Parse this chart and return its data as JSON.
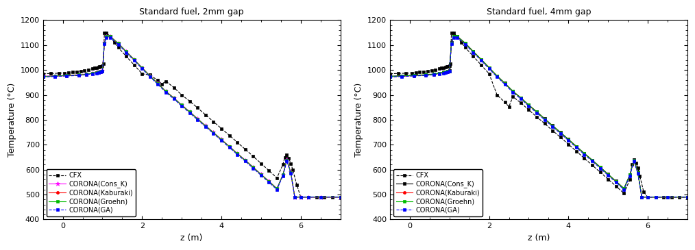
{
  "title_left": "Standard fuel, 2mm gap",
  "title_right": "Standard fuel, 4mm gap",
  "xlabel": "z (m)",
  "ylabel": "Temperature (°C)",
  "xlim": [
    -0.5,
    7.0
  ],
  "ylim": [
    400,
    1200
  ],
  "yticks": [
    400,
    500,
    600,
    700,
    800,
    900,
    1000,
    1100,
    1200
  ],
  "xticks": [
    0,
    2,
    4,
    6
  ],
  "legend_labels": [
    "CFX",
    "CORONA(Cons_K)",
    "CORONA(Kaburaki)",
    "CORONA(Groehn)",
    "CORONA(GA)"
  ],
  "series_left": [
    {
      "name": "CFX",
      "color": "#000000",
      "linestyle": "--",
      "marker": "s",
      "markersize": 3,
      "z": [
        -0.5,
        -0.3,
        -0.1,
        0.05,
        0.15,
        0.25,
        0.35,
        0.45,
        0.55,
        0.65,
        0.75,
        0.8,
        0.85,
        0.9,
        0.93,
        0.96,
        0.98,
        1.0,
        1.02,
        1.05,
        1.1,
        1.2,
        1.3,
        1.4,
        1.6,
        1.8,
        2.0,
        2.2,
        2.4,
        2.5,
        2.6,
        2.8,
        3.0,
        3.2,
        3.4,
        3.6,
        3.8,
        4.0,
        4.2,
        4.4,
        4.6,
        4.8,
        5.0,
        5.2,
        5.4,
        5.55,
        5.6,
        5.65,
        5.7,
        5.75,
        5.8,
        5.9,
        6.0,
        6.2,
        6.4,
        6.6,
        6.8,
        7.0
      ],
      "T": [
        985,
        986,
        987,
        988,
        989,
        991,
        993,
        995,
        998,
        1001,
        1005,
        1008,
        1010,
        1012,
        1013,
        1014,
        1015,
        1016,
        1024,
        1148,
        1148,
        1135,
        1110,
        1090,
        1055,
        1020,
        985,
        980,
        958,
        944,
        955,
        930,
        900,
        875,
        848,
        820,
        793,
        765,
        738,
        710,
        682,
        654,
        625,
        596,
        567,
        620,
        650,
        660,
        645,
        625,
        600,
        540,
        490,
        490,
        490,
        490,
        490,
        490
      ]
    },
    {
      "name": "CORONA(Cons_K)",
      "color": "#ff00ff",
      "linestyle": "-",
      "marker": "*",
      "markersize": 5,
      "z": [
        -0.5,
        -0.2,
        0.1,
        0.4,
        0.6,
        0.75,
        0.85,
        0.9,
        0.95,
        1.0,
        1.05,
        1.1,
        1.2,
        1.4,
        1.6,
        1.8,
        2.0,
        2.2,
        2.4,
        2.6,
        2.8,
        3.0,
        3.2,
        3.4,
        3.6,
        3.8,
        4.0,
        4.2,
        4.4,
        4.6,
        4.8,
        5.0,
        5.2,
        5.4,
        5.55,
        5.65,
        5.75,
        5.85,
        6.0,
        6.2,
        6.5,
        7.0
      ],
      "T": [
        975,
        977,
        979,
        981,
        984,
        988,
        991,
        993,
        995,
        997,
        1110,
        1135,
        1135,
        1108,
        1075,
        1043,
        1010,
        977,
        947,
        915,
        889,
        860,
        833,
        805,
        777,
        750,
        722,
        694,
        666,
        639,
        611,
        582,
        554,
        525,
        580,
        640,
        590,
        490,
        490,
        490,
        490,
        490
      ]
    },
    {
      "name": "CORONA(Kaburaki)",
      "color": "#ff0000",
      "linestyle": "-",
      "marker": "o",
      "markersize": 3,
      "z": [
        -0.5,
        -0.2,
        0.1,
        0.4,
        0.6,
        0.75,
        0.85,
        0.9,
        0.95,
        1.0,
        1.05,
        1.1,
        1.2,
        1.4,
        1.6,
        1.8,
        2.0,
        2.2,
        2.4,
        2.6,
        2.8,
        3.0,
        3.2,
        3.4,
        3.6,
        3.8,
        4.0,
        4.2,
        4.4,
        4.6,
        4.8,
        5.0,
        5.2,
        5.4,
        5.55,
        5.65,
        5.75,
        5.85,
        6.0,
        6.2,
        6.5,
        7.0
      ],
      "T": [
        973,
        975,
        977,
        979,
        982,
        986,
        989,
        991,
        993,
        995,
        1108,
        1133,
        1133,
        1106,
        1073,
        1041,
        1008,
        975,
        945,
        913,
        887,
        858,
        831,
        803,
        775,
        748,
        720,
        692,
        664,
        637,
        609,
        580,
        552,
        523,
        578,
        638,
        588,
        490,
        490,
        490,
        490,
        490
      ]
    },
    {
      "name": "CORONA(Groehn)",
      "color": "#00bb00",
      "linestyle": "-",
      "marker": "s",
      "markersize": 3,
      "z": [
        -0.5,
        -0.2,
        0.1,
        0.4,
        0.6,
        0.75,
        0.85,
        0.9,
        0.95,
        1.0,
        1.05,
        1.1,
        1.2,
        1.4,
        1.6,
        1.8,
        2.0,
        2.2,
        2.4,
        2.6,
        2.8,
        3.0,
        3.2,
        3.4,
        3.6,
        3.8,
        4.0,
        4.2,
        4.4,
        4.6,
        4.8,
        5.0,
        5.2,
        5.4,
        5.55,
        5.65,
        5.75,
        5.85,
        6.0,
        6.2,
        6.5,
        7.0
      ],
      "T": [
        974,
        976,
        978,
        980,
        983,
        987,
        990,
        992,
        994,
        996,
        1109,
        1134,
        1134,
        1107,
        1074,
        1042,
        1009,
        976,
        946,
        914,
        888,
        859,
        832,
        804,
        776,
        749,
        721,
        693,
        665,
        638,
        610,
        581,
        553,
        524,
        579,
        639,
        589,
        490,
        490,
        490,
        490,
        490
      ]
    },
    {
      "name": "CORONA(GA)",
      "color": "#0000ff",
      "linestyle": "--",
      "marker": "s",
      "markersize": 3,
      "z": [
        -0.5,
        -0.2,
        0.1,
        0.4,
        0.6,
        0.75,
        0.85,
        0.9,
        0.95,
        1.0,
        1.05,
        1.1,
        1.2,
        1.4,
        1.6,
        1.8,
        2.0,
        2.2,
        2.4,
        2.6,
        2.8,
        3.0,
        3.2,
        3.4,
        3.6,
        3.8,
        4.0,
        4.2,
        4.4,
        4.6,
        4.8,
        5.0,
        5.2,
        5.4,
        5.55,
        5.65,
        5.75,
        5.85,
        6.0,
        6.2,
        6.5,
        7.0
      ],
      "T": [
        972,
        974,
        976,
        978,
        981,
        985,
        988,
        990,
        992,
        994,
        1106,
        1130,
        1130,
        1103,
        1070,
        1038,
        1005,
        972,
        942,
        910,
        884,
        855,
        828,
        800,
        772,
        745,
        717,
        689,
        661,
        634,
        606,
        577,
        549,
        520,
        575,
        635,
        585,
        490,
        490,
        490,
        490,
        490
      ]
    }
  ],
  "series_right": [
    {
      "name": "CFX",
      "color": "#000000",
      "linestyle": "--",
      "marker": "s",
      "markersize": 3,
      "z": [
        -0.5,
        -0.3,
        -0.1,
        0.05,
        0.15,
        0.25,
        0.35,
        0.45,
        0.55,
        0.65,
        0.75,
        0.8,
        0.85,
        0.9,
        0.93,
        0.96,
        0.98,
        1.0,
        1.02,
        1.05,
        1.1,
        1.2,
        1.3,
        1.4,
        1.6,
        1.8,
        2.0,
        2.2,
        2.4,
        2.5,
        2.6,
        2.8,
        3.0,
        3.2,
        3.4,
        3.6,
        3.8,
        4.0,
        4.2,
        4.4,
        4.6,
        4.8,
        5.0,
        5.2,
        5.4,
        5.55,
        5.6,
        5.65,
        5.7,
        5.75,
        5.8,
        5.9,
        6.0,
        6.2,
        6.4,
        6.6,
        6.8,
        7.0
      ],
      "T": [
        985,
        986,
        987,
        988,
        989,
        991,
        993,
        995,
        998,
        1001,
        1005,
        1008,
        1010,
        1012,
        1013,
        1014,
        1015,
        1016,
        1024,
        1148,
        1148,
        1135,
        1110,
        1090,
        1055,
        1020,
        985,
        900,
        870,
        853,
        893,
        868,
        840,
        812,
        785,
        757,
        730,
        702,
        674,
        646,
        618,
        590,
        562,
        534,
        505,
        560,
        620,
        638,
        628,
        608,
        575,
        510,
        490,
        490,
        490,
        490,
        490,
        490
      ]
    },
    {
      "name": "CORONA(Cons_K)",
      "color": "#000000",
      "linestyle": "-",
      "marker": "s",
      "markersize": 3,
      "z": [
        -0.5,
        -0.2,
        0.1,
        0.4,
        0.6,
        0.75,
        0.85,
        0.9,
        0.95,
        1.0,
        1.05,
        1.1,
        1.2,
        1.4,
        1.6,
        1.8,
        2.0,
        2.2,
        2.4,
        2.6,
        2.8,
        3.0,
        3.2,
        3.4,
        3.6,
        3.8,
        4.0,
        4.2,
        4.4,
        4.6,
        4.8,
        5.0,
        5.2,
        5.4,
        5.55,
        5.65,
        5.75,
        5.85,
        6.0,
        6.2,
        6.5,
        7.0
      ],
      "T": [
        975,
        977,
        979,
        981,
        984,
        988,
        991,
        993,
        995,
        997,
        1110,
        1135,
        1135,
        1108,
        1075,
        1043,
        1010,
        977,
        947,
        915,
        889,
        860,
        833,
        805,
        777,
        750,
        722,
        694,
        666,
        639,
        611,
        582,
        554,
        525,
        580,
        640,
        590,
        490,
        490,
        490,
        490,
        490
      ]
    },
    {
      "name": "CORONA(Kaburaki)",
      "color": "#ff0000",
      "linestyle": "-",
      "marker": "o",
      "markersize": 3,
      "z": [
        -0.5,
        -0.2,
        0.1,
        0.4,
        0.6,
        0.75,
        0.85,
        0.9,
        0.95,
        1.0,
        1.05,
        1.1,
        1.2,
        1.4,
        1.6,
        1.8,
        2.0,
        2.2,
        2.4,
        2.6,
        2.8,
        3.0,
        3.2,
        3.4,
        3.6,
        3.8,
        4.0,
        4.2,
        4.4,
        4.6,
        4.8,
        5.0,
        5.2,
        5.4,
        5.55,
        5.65,
        5.75,
        5.85,
        6.0,
        6.2,
        6.5,
        7.0
      ],
      "T": [
        973,
        975,
        977,
        979,
        982,
        986,
        989,
        991,
        993,
        995,
        1108,
        1133,
        1133,
        1106,
        1073,
        1041,
        1008,
        975,
        945,
        913,
        887,
        858,
        831,
        803,
        775,
        748,
        720,
        692,
        664,
        637,
        609,
        580,
        552,
        523,
        578,
        638,
        588,
        490,
        490,
        490,
        490,
        490
      ]
    },
    {
      "name": "CORONA(Groehn)",
      "color": "#00bb00",
      "linestyle": "-",
      "marker": "s",
      "markersize": 3,
      "z": [
        -0.5,
        -0.2,
        0.1,
        0.4,
        0.6,
        0.75,
        0.85,
        0.9,
        0.95,
        1.0,
        1.05,
        1.1,
        1.2,
        1.4,
        1.6,
        1.8,
        2.0,
        2.2,
        2.4,
        2.6,
        2.8,
        3.0,
        3.2,
        3.4,
        3.6,
        3.8,
        4.0,
        4.2,
        4.4,
        4.6,
        4.8,
        5.0,
        5.2,
        5.4,
        5.55,
        5.65,
        5.75,
        5.85,
        6.0,
        6.2,
        6.5,
        7.0
      ],
      "T": [
        974,
        976,
        978,
        980,
        983,
        987,
        990,
        992,
        994,
        996,
        1109,
        1134,
        1134,
        1107,
        1074,
        1042,
        1009,
        976,
        946,
        914,
        888,
        859,
        832,
        804,
        776,
        749,
        721,
        693,
        665,
        638,
        610,
        581,
        553,
        524,
        579,
        639,
        589,
        490,
        490,
        490,
        490,
        490
      ]
    },
    {
      "name": "CORONA(GA)",
      "color": "#0000ff",
      "linestyle": "--",
      "marker": "s",
      "markersize": 3,
      "z": [
        -0.5,
        -0.2,
        0.1,
        0.4,
        0.6,
        0.75,
        0.85,
        0.9,
        0.95,
        1.0,
        1.05,
        1.1,
        1.2,
        1.4,
        1.6,
        1.8,
        2.0,
        2.2,
        2.4,
        2.6,
        2.8,
        3.0,
        3.2,
        3.4,
        3.6,
        3.8,
        4.0,
        4.2,
        4.4,
        4.6,
        4.8,
        5.0,
        5.2,
        5.4,
        5.55,
        5.65,
        5.75,
        5.85,
        6.0,
        6.2,
        6.5,
        7.0
      ],
      "T": [
        972,
        974,
        976,
        978,
        981,
        985,
        988,
        990,
        992,
        994,
        1106,
        1130,
        1130,
        1103,
        1070,
        1038,
        1005,
        972,
        942,
        910,
        884,
        855,
        828,
        800,
        772,
        745,
        717,
        689,
        661,
        634,
        606,
        577,
        549,
        520,
        575,
        635,
        585,
        490,
        490,
        490,
        490,
        490
      ]
    }
  ]
}
